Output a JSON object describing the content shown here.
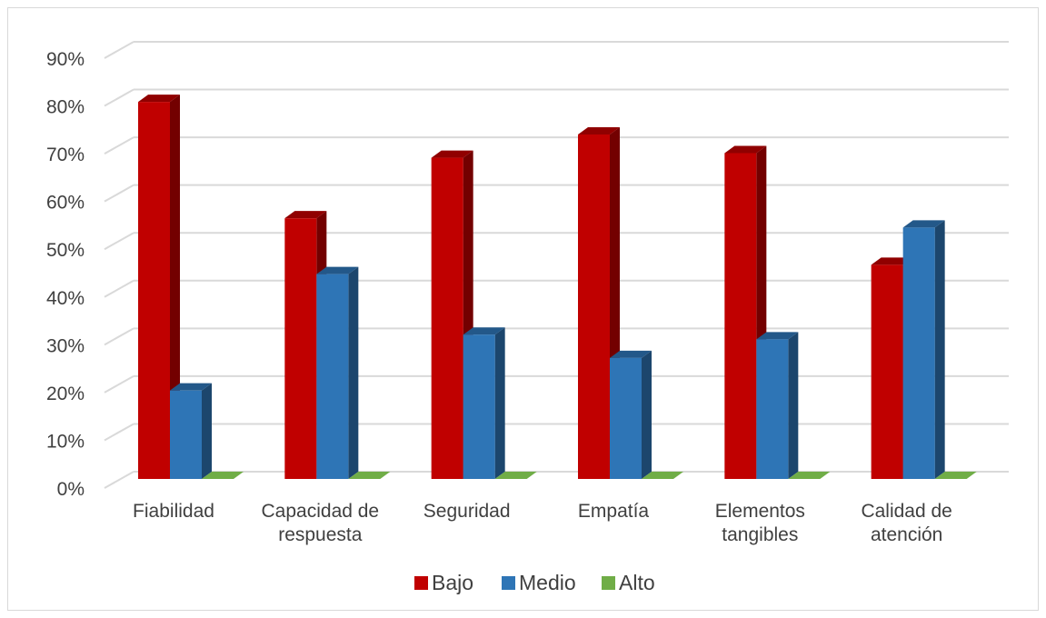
{
  "chart_data": {
    "type": "bar",
    "style": "3d-clustered-column",
    "categories": [
      [
        "Fiabilidad"
      ],
      [
        "Capacidad de",
        "respuesta"
      ],
      [
        "Seguridad"
      ],
      [
        "Empatía"
      ],
      [
        "Elementos",
        "tangibles"
      ],
      [
        "Calidad de",
        "atención"
      ]
    ],
    "series": [
      {
        "name": "Bajo",
        "color": "#C00000",
        "values": [
          0.81,
          0.56,
          0.69,
          0.74,
          0.7,
          0.46
        ]
      },
      {
        "name": "Medio",
        "color": "#2E75B6",
        "values": [
          0.19,
          0.44,
          0.31,
          0.26,
          0.3,
          0.54
        ]
      },
      {
        "name": "Alto",
        "color": "#70AD47",
        "values": [
          0,
          0,
          0,
          0,
          0,
          0
        ]
      }
    ],
    "y_ticks": [
      "0%",
      "10%",
      "20%",
      "30%",
      "40%",
      "50%",
      "60%",
      "70%",
      "80%",
      "90%"
    ],
    "ylim": [
      0,
      0.9
    ],
    "grid": true,
    "legend_position": "bottom"
  }
}
